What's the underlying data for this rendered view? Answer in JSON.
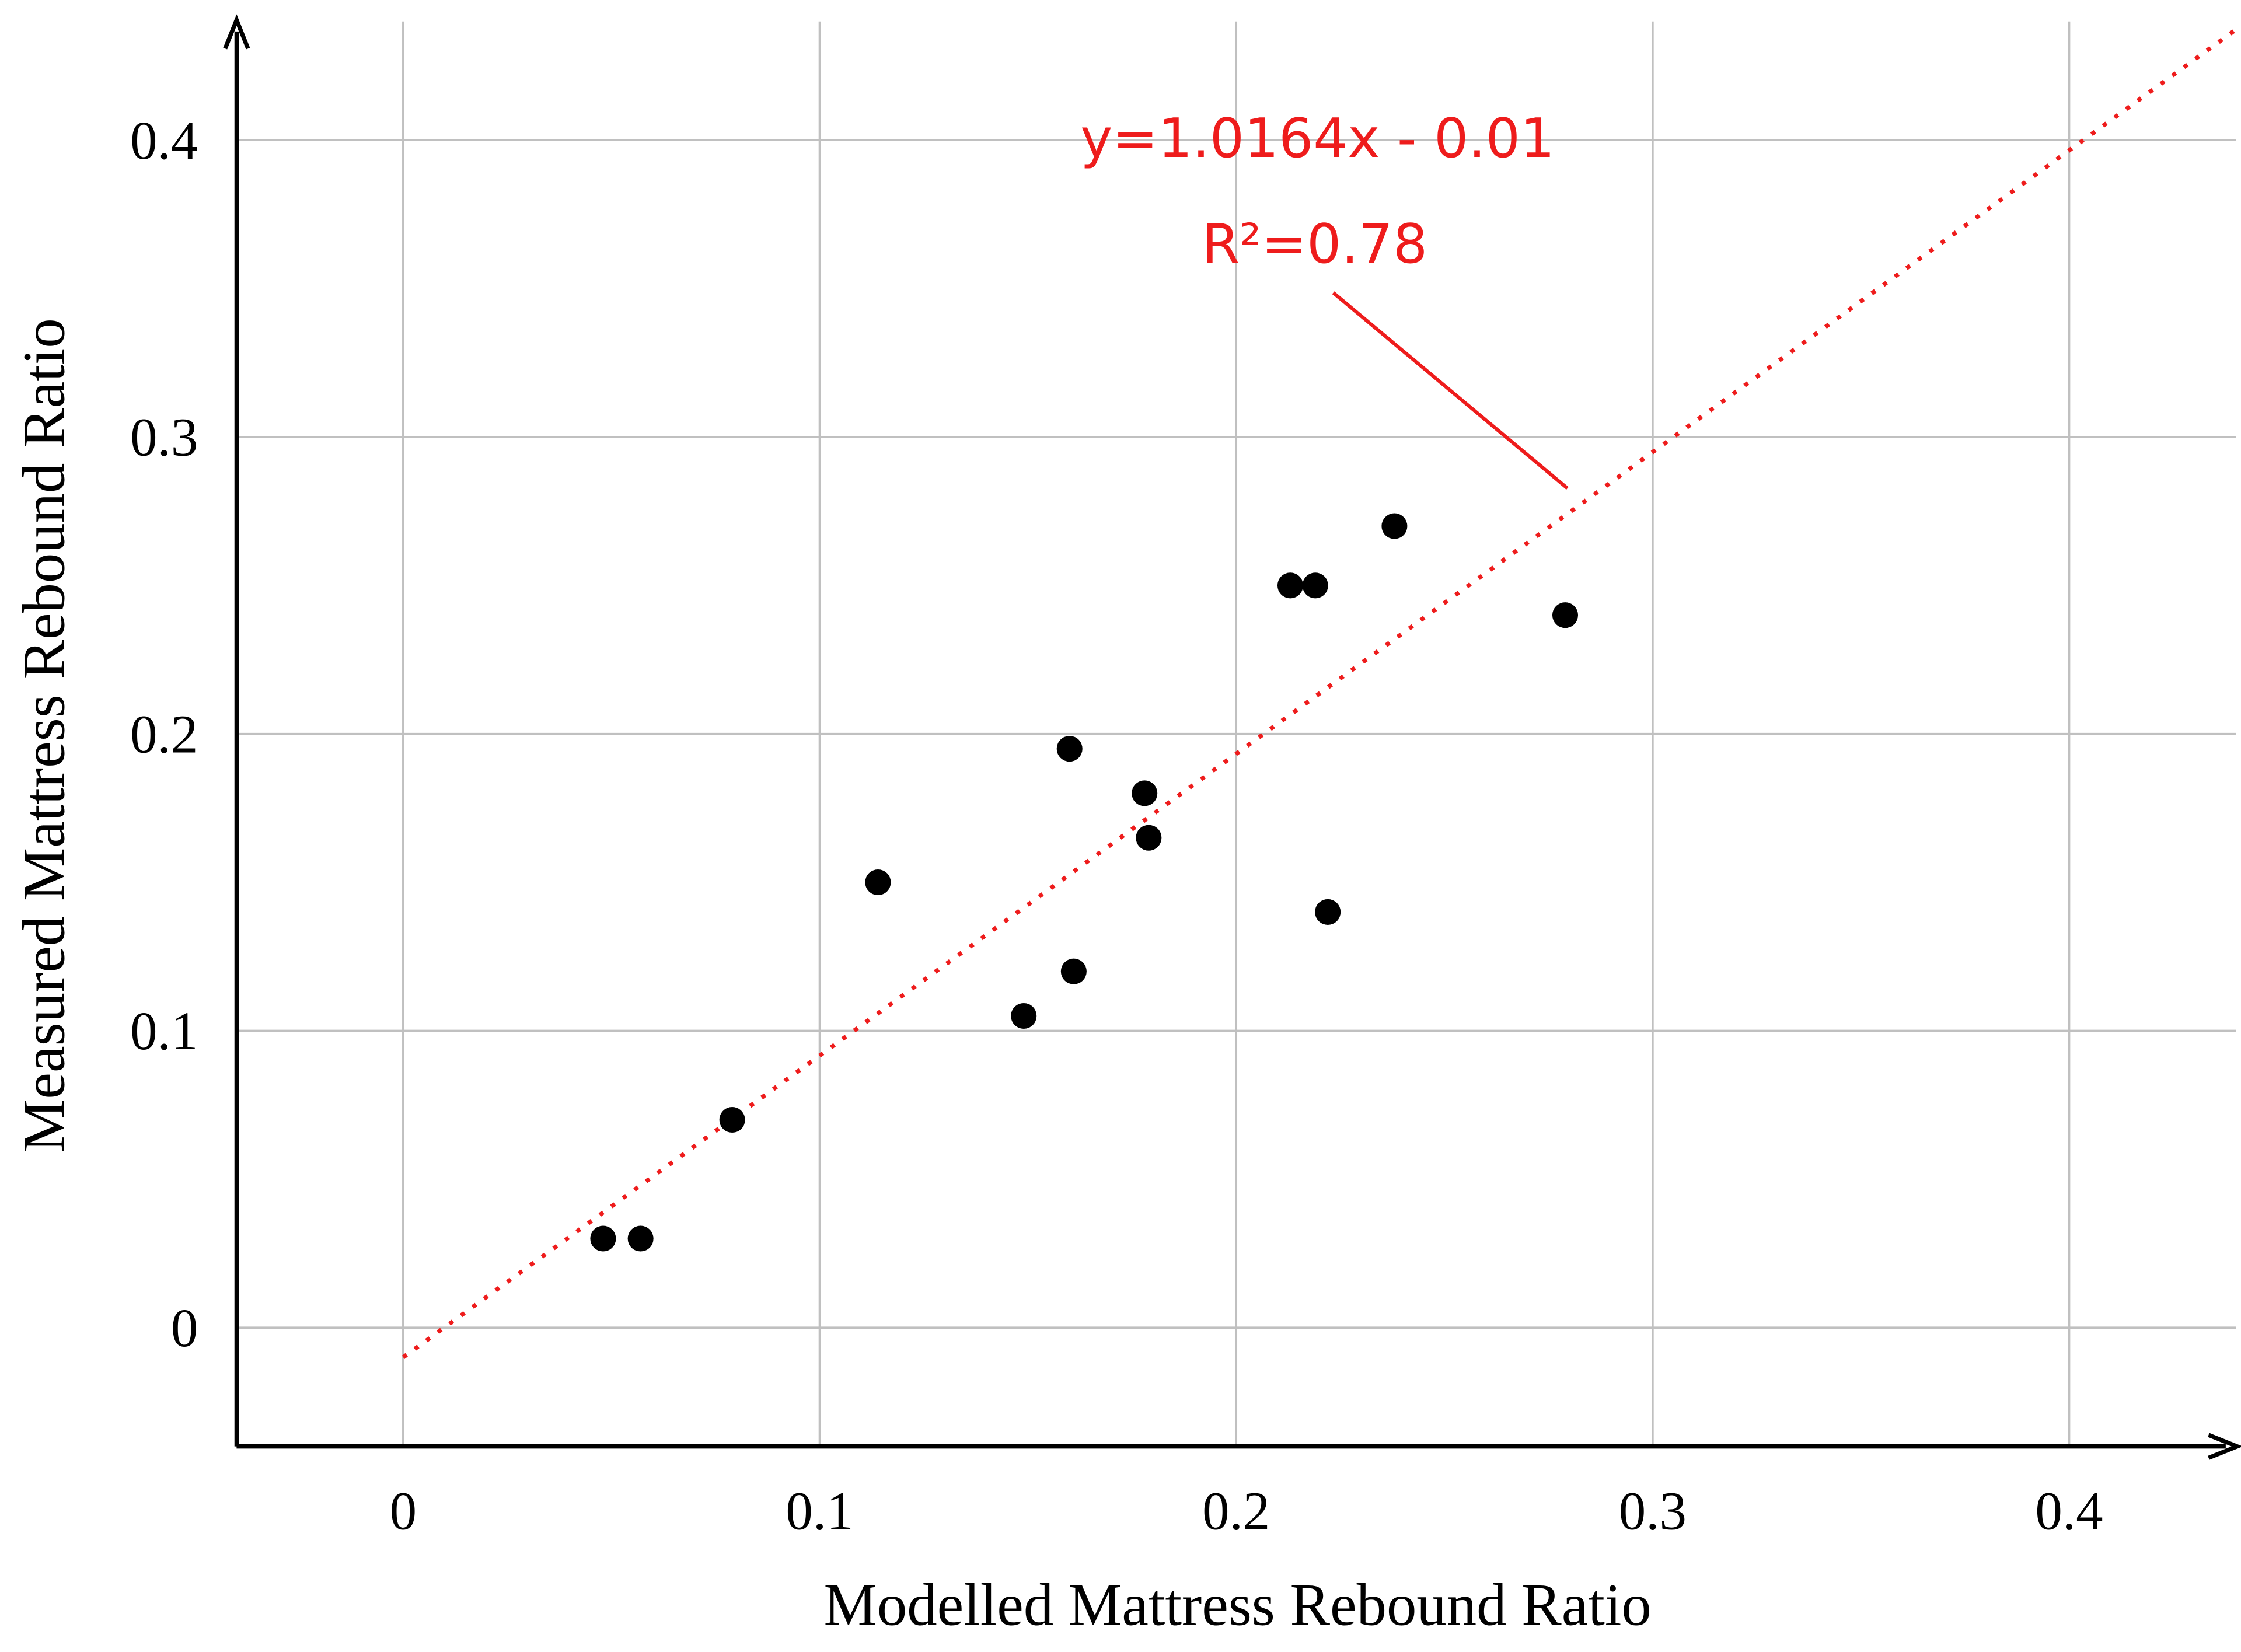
{
  "chart_data": {
    "type": "scatter",
    "xlabel": "Modelled Mattress Rebound Ratio",
    "ylabel": "Measured Mattress Rebound Ratio",
    "x": [
      0.048,
      0.057,
      0.079,
      0.114,
      0.149,
      0.16,
      0.161,
      0.178,
      0.179,
      0.213,
      0.219,
      0.222,
      0.238,
      0.279
    ],
    "values": [
      0.03,
      0.03,
      0.07,
      0.15,
      0.105,
      0.195,
      0.12,
      0.18,
      0.165,
      0.25,
      0.25,
      0.14,
      0.27,
      0.24
    ],
    "color": "#000000",
    "xlim": [
      -0.04,
      0.44
    ],
    "ylim": [
      -0.04,
      0.44
    ],
    "xticks": [
      0,
      0.1,
      0.2,
      0.3,
      0.4
    ],
    "yticks": [
      0,
      0.1,
      0.2,
      0.3,
      0.4
    ],
    "grid": true,
    "trendline": {
      "slope": 1.0164,
      "intercept": -0.01,
      "color": "#ee1c1c"
    },
    "annotations": [
      "y=1.0164x - 0.01",
      "R²=0.78"
    ]
  }
}
